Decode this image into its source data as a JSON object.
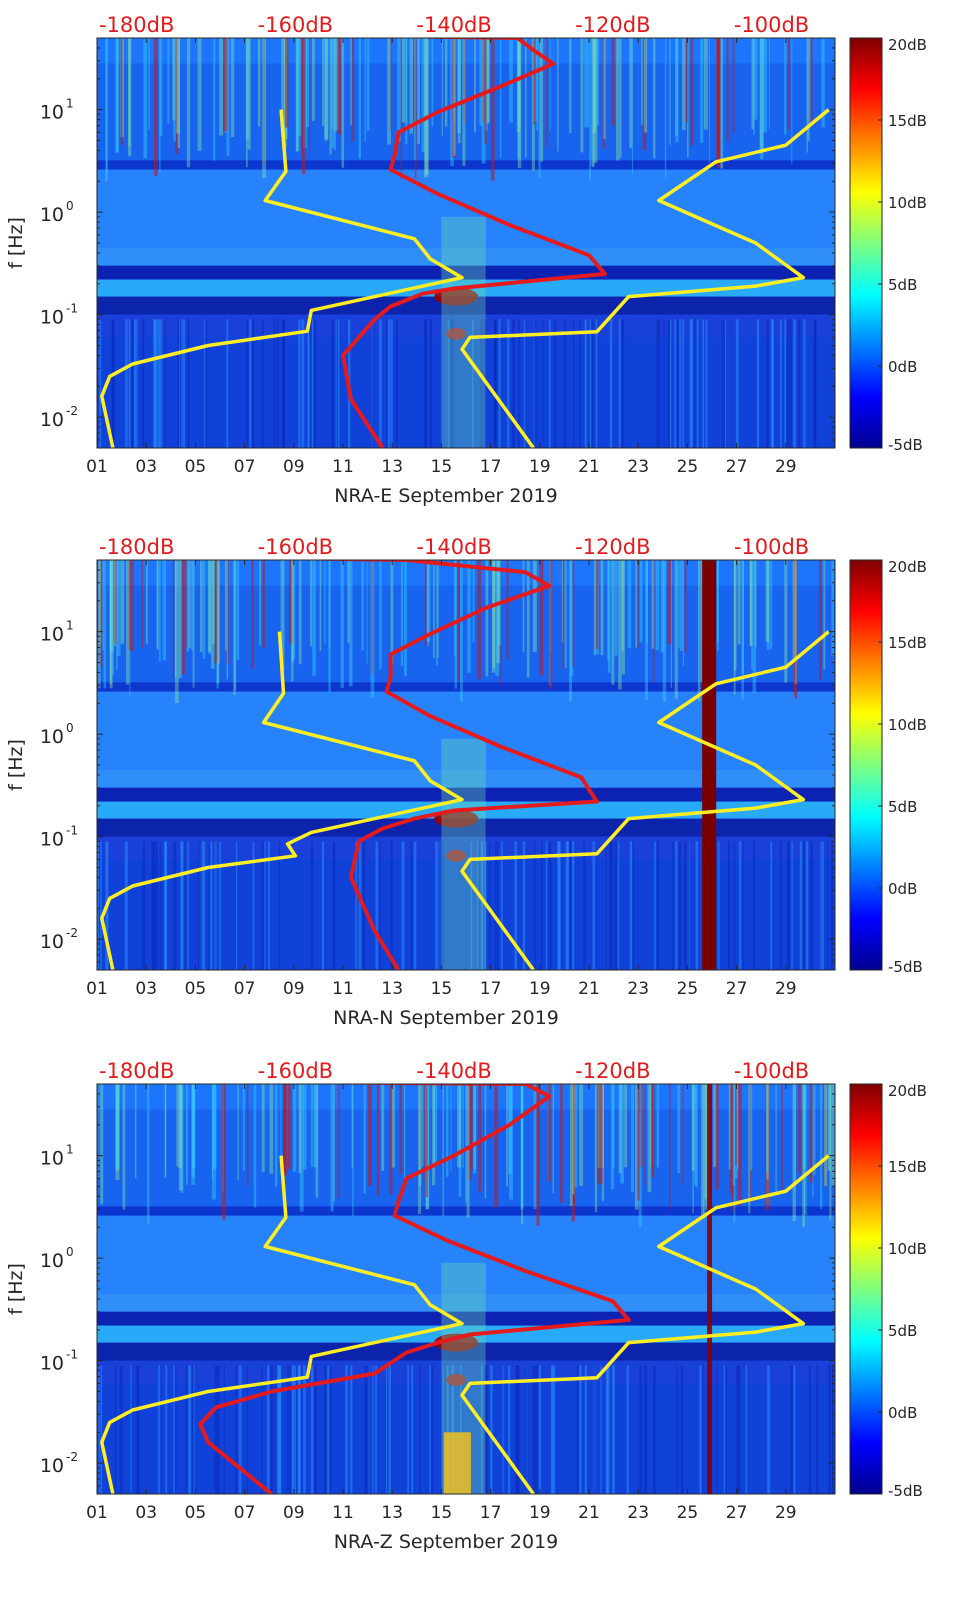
{
  "chart_data": [
    {
      "type": "heatmap",
      "xlabel": "NRA-E September 2019",
      "ylabel": "f [Hz]",
      "x_ticks": [
        "01",
        "03",
        "05",
        "07",
        "09",
        "11",
        "13",
        "15",
        "17",
        "19",
        "21",
        "23",
        "25",
        "27",
        "29"
      ],
      "y_ticks": [
        {
          "label": "10",
          "exp": "1",
          "value": 10
        },
        {
          "label": "10",
          "exp": "0",
          "value": 1
        },
        {
          "label": "10",
          "exp": "-1",
          "value": 0.1
        },
        {
          "label": "10",
          "exp": "-2",
          "value": 0.01
        }
      ],
      "y_scale": "log",
      "ylim": [
        0.005,
        50
      ],
      "xlim": [
        1,
        31
      ],
      "top_axis_ticks": [
        "-180dB",
        "-160dB",
        "-140dB",
        "-120dB",
        "-100dB"
      ],
      "top_axis_range_db": [
        -185,
        -92
      ],
      "colorbar_ticks": [
        "20dB",
        "15dB",
        "10dB",
        "5dB",
        "0dB",
        "-5dB"
      ],
      "colorbar_range_db": [
        -5,
        20
      ],
      "colormap": "jet",
      "series": [
        {
          "color": "#ffee22",
          "points": [
            [
              -161.8,
              10
            ],
            [
              -161.2,
              2.5
            ],
            [
              -163.8,
              1.3
            ],
            [
              -145,
              0.55
            ],
            [
              -143,
              0.35
            ],
            [
              -139,
              0.23
            ],
            [
              -158,
              0.11
            ],
            [
              -158.5,
              0.069
            ],
            [
              -171,
              0.05
            ],
            [
              -180.5,
              0.033
            ],
            [
              -183.4,
              0.025
            ],
            [
              -184.4,
              0.016
            ],
            [
              -183,
              0.005
            ]
          ]
        },
        {
          "color": "#ffee22",
          "points": [
            [
              -92.8,
              10
            ],
            [
              -98.2,
              4.5
            ],
            [
              -107,
              3.1
            ],
            [
              -114.2,
              1.3
            ],
            [
              -102,
              0.5
            ],
            [
              -96,
              0.23
            ],
            [
              -102,
              0.19
            ],
            [
              -118,
              0.15
            ],
            [
              -122,
              0.068
            ],
            [
              -138,
              0.06
            ],
            [
              -139,
              0.046
            ],
            [
              -130,
              0.005
            ]
          ]
        },
        {
          "color": "#e41a1c",
          "points": [
            [
              -147,
              52
            ],
            [
              -132,
              50
            ],
            [
              -130,
              38
            ],
            [
              -127.5,
              28
            ],
            [
              -134,
              17
            ],
            [
              -142,
              9.5
            ],
            [
              -147,
              6
            ],
            [
              -147.5,
              3.6
            ],
            [
              -148,
              2.6
            ],
            [
              -142,
              1.5
            ],
            [
              -133,
              0.75
            ],
            [
              -123,
              0.38
            ],
            [
              -121,
              0.25
            ],
            [
              -140,
              0.18
            ],
            [
              -144,
              0.16
            ],
            [
              -148,
              0.12
            ],
            [
              -150,
              0.09
            ],
            [
              -154,
              0.04
            ],
            [
              -153,
              0.015
            ],
            [
              -149,
              0.005
            ]
          ]
        }
      ]
    },
    {
      "type": "heatmap",
      "xlabel": "NRA-N September 2019",
      "ylabel": "f [Hz]",
      "x_ticks": [
        "01",
        "03",
        "05",
        "07",
        "09",
        "11",
        "13",
        "15",
        "17",
        "19",
        "21",
        "23",
        "25",
        "27",
        "29"
      ],
      "y_ticks": [
        {
          "label": "10",
          "exp": "1",
          "value": 10
        },
        {
          "label": "10",
          "exp": "0",
          "value": 1
        },
        {
          "label": "10",
          "exp": "-1",
          "value": 0.1
        },
        {
          "label": "10",
          "exp": "-2",
          "value": 0.01
        }
      ],
      "y_scale": "log",
      "ylim": [
        0.005,
        50
      ],
      "xlim": [
        1,
        31
      ],
      "top_axis_ticks": [
        "-180dB",
        "-160dB",
        "-140dB",
        "-120dB",
        "-100dB"
      ],
      "top_axis_range_db": [
        -185,
        -92
      ],
      "colorbar_ticks": [
        "20dB",
        "15dB",
        "10dB",
        "5dB",
        "0dB",
        "-5dB"
      ],
      "colorbar_range_db": [
        -5,
        20
      ],
      "colormap": "jet",
      "series": [
        {
          "color": "#ffee22",
          "points": [
            [
              -162,
              10
            ],
            [
              -161.5,
              2.5
            ],
            [
              -164,
              1.3
            ],
            [
              -145,
              0.55
            ],
            [
              -143,
              0.35
            ],
            [
              -139,
              0.23
            ],
            [
              -158,
              0.11
            ],
            [
              -161,
              0.085
            ],
            [
              -160,
              0.065
            ],
            [
              -171,
              0.05
            ],
            [
              -180.5,
              0.033
            ],
            [
              -183.4,
              0.025
            ],
            [
              -184.4,
              0.016
            ],
            [
              -183,
              0.005
            ]
          ]
        },
        {
          "color": "#ffee22",
          "points": [
            [
              -92.8,
              10
            ],
            [
              -98.2,
              4.5
            ],
            [
              -107,
              3.1
            ],
            [
              -114.2,
              1.3
            ],
            [
              -102,
              0.5
            ],
            [
              -96,
              0.23
            ],
            [
              -102,
              0.19
            ],
            [
              -118,
              0.15
            ],
            [
              -122,
              0.068
            ],
            [
              -138,
              0.06
            ],
            [
              -139,
              0.046
            ],
            [
              -130,
              0.005
            ]
          ]
        },
        {
          "color": "#e41a1c",
          "points": [
            [
              -160,
              52
            ],
            [
              -146,
              50
            ],
            [
              -131,
              38
            ],
            [
              -128,
              28
            ],
            [
              -136,
              17
            ],
            [
              -143,
              9.5
            ],
            [
              -148,
              6
            ],
            [
              -148,
              3.6
            ],
            [
              -148.5,
              2.6
            ],
            [
              -143,
              1.5
            ],
            [
              -134,
              0.75
            ],
            [
              -124,
              0.38
            ],
            [
              -122,
              0.22
            ],
            [
              -140,
              0.18
            ],
            [
              -145,
              0.15
            ],
            [
              -149,
              0.12
            ],
            [
              -152,
              0.09
            ],
            [
              -153,
              0.04
            ],
            [
              -150,
              0.012
            ],
            [
              -147,
              0.005
            ]
          ]
        }
      ]
    },
    {
      "type": "heatmap",
      "xlabel": "NRA-Z September 2019",
      "ylabel": "f [Hz]",
      "x_ticks": [
        "01",
        "03",
        "05",
        "07",
        "09",
        "11",
        "13",
        "15",
        "17",
        "19",
        "21",
        "23",
        "25",
        "27",
        "29"
      ],
      "y_ticks": [
        {
          "label": "10",
          "exp": "1",
          "value": 10
        },
        {
          "label": "10",
          "exp": "0",
          "value": 1
        },
        {
          "label": "10",
          "exp": "-1",
          "value": 0.1
        },
        {
          "label": "10",
          "exp": "-2",
          "value": 0.01
        }
      ],
      "y_scale": "log",
      "ylim": [
        0.005,
        50
      ],
      "xlim": [
        1,
        31
      ],
      "top_axis_ticks": [
        "-180dB",
        "-160dB",
        "-140dB",
        "-120dB",
        "-100dB"
      ],
      "top_axis_range_db": [
        -185,
        -92
      ],
      "colorbar_ticks": [
        "20dB",
        "15dB",
        "10dB",
        "5dB",
        "0dB",
        "-5dB"
      ],
      "colorbar_range_db": [
        -5,
        20
      ],
      "colormap": "jet",
      "series": [
        {
          "color": "#ffee22",
          "points": [
            [
              -161.8,
              10
            ],
            [
              -161.2,
              2.5
            ],
            [
              -163.8,
              1.3
            ],
            [
              -145,
              0.55
            ],
            [
              -143,
              0.35
            ],
            [
              -139,
              0.23
            ],
            [
              -158,
              0.11
            ],
            [
              -158.5,
              0.069
            ],
            [
              -171,
              0.05
            ],
            [
              -180.5,
              0.033
            ],
            [
              -183.4,
              0.025
            ],
            [
              -184.4,
              0.016
            ],
            [
              -183,
              0.005
            ]
          ]
        },
        {
          "color": "#ffee22",
          "points": [
            [
              -92.8,
              10
            ],
            [
              -98.2,
              4.5
            ],
            [
              -107,
              3.1
            ],
            [
              -114.2,
              1.3
            ],
            [
              -102,
              0.5
            ],
            [
              -96,
              0.23
            ],
            [
              -102,
              0.19
            ],
            [
              -118,
              0.15
            ],
            [
              -122,
              0.068
            ],
            [
              -138,
              0.06
            ],
            [
              -139,
              0.046
            ],
            [
              -130,
              0.005
            ]
          ]
        },
        {
          "color": "#e41a1c",
          "points": [
            [
              -158,
              52
            ],
            [
              -131,
              50
            ],
            [
              -128,
              38
            ],
            [
              -133,
              20
            ],
            [
              -140,
              10
            ],
            [
              -146,
              6
            ],
            [
              -147,
              3.6
            ],
            [
              -147.5,
              2.6
            ],
            [
              -141,
              1.5
            ],
            [
              -131,
              0.75
            ],
            [
              -120,
              0.38
            ],
            [
              -118,
              0.25
            ],
            [
              -138,
              0.18
            ],
            [
              -142,
              0.15
            ],
            [
              -146,
              0.12
            ],
            [
              -150,
              0.075
            ],
            [
              -163,
              0.05
            ],
            [
              -170,
              0.035
            ],
            [
              -172,
              0.024
            ],
            [
              -171,
              0.016
            ],
            [
              -163,
              0.005
            ]
          ]
        }
      ]
    }
  ]
}
